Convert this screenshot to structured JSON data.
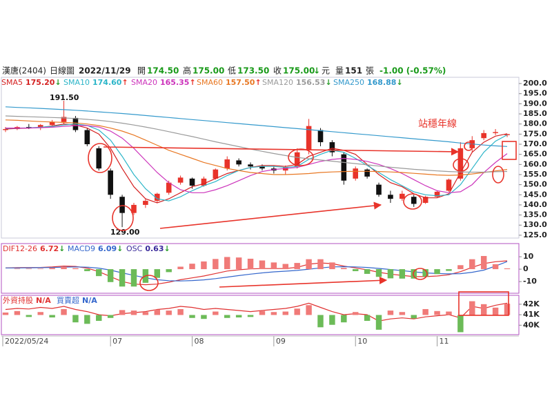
{
  "header": {
    "name": "漢唐(2404)",
    "period": "日線圖",
    "date": "2022/11/29",
    "open_label": "開",
    "open": "174.50",
    "high_label": "高",
    "high": "175.00",
    "low_label": "低",
    "low": "173.50",
    "close_label": "收",
    "close": "175.00",
    "close_arrow": "↓",
    "unit": "元",
    "volume_label": "量",
    "volume": "151",
    "volume_unit": "張",
    "change": "-1.00 (-0.57%)"
  },
  "chart_data": [
    {
      "type": "candlestick",
      "ylim": [
        123.6,
        203.1
      ],
      "yticks": [
        {
          "value": 200,
          "label": "200.0"
        },
        {
          "value": 195,
          "label": "195.0"
        },
        {
          "value": 190,
          "label": "190.0"
        },
        {
          "value": 185,
          "label": "185.0"
        },
        {
          "value": 180,
          "label": "180.0"
        },
        {
          "value": 175,
          "label": "175.0"
        },
        {
          "value": 170,
          "label": "170.0"
        },
        {
          "value": 165,
          "label": "165.0"
        },
        {
          "value": 160,
          "label": "160.0"
        },
        {
          "value": 155,
          "label": "155.0"
        },
        {
          "value": 150,
          "label": "150.0"
        },
        {
          "value": 145,
          "label": "145.0"
        },
        {
          "value": 140,
          "label": "140.0"
        },
        {
          "value": 135,
          "label": "135.0"
        },
        {
          "value": 130,
          "label": "130.0"
        },
        {
          "value": 125,
          "label": "125.0"
        }
      ],
      "categories": [
        "2022/05/24",
        null,
        null,
        null,
        null,
        null,
        null,
        null,
        null,
        "07",
        null,
        null,
        null,
        null,
        null,
        null,
        "08",
        null,
        null,
        null,
        null,
        null,
        null,
        "09",
        null,
        null,
        null,
        null,
        null,
        null,
        "10",
        null,
        null,
        null,
        null,
        null,
        null,
        "11",
        null,
        null,
        null,
        null,
        null,
        null
      ],
      "up_color": "#e8332a",
      "down_color": "#111111",
      "candles": [
        [
          177,
          178.5,
          176,
          177.5
        ],
        [
          177.5,
          179,
          177,
          178.5
        ],
        [
          178.5,
          180,
          177.5,
          178
        ],
        [
          178,
          180,
          177,
          179.5
        ],
        [
          179.5,
          182,
          179,
          181
        ],
        [
          181,
          191.5,
          180,
          183.5
        ],
        [
          183,
          184,
          176,
          177
        ],
        [
          177,
          178,
          169,
          170
        ],
        [
          168,
          169,
          157,
          158
        ],
        [
          157,
          158,
          143,
          145
        ],
        [
          144,
          145,
          129,
          136
        ],
        [
          136,
          141,
          135,
          140
        ],
        [
          140,
          143,
          138.5,
          142
        ],
        [
          142,
          146,
          141,
          145.5
        ],
        [
          146,
          152,
          145,
          151
        ],
        [
          151,
          154.5,
          150,
          153.5
        ],
        [
          153,
          153.5,
          148,
          149.5
        ],
        [
          149.5,
          154,
          149,
          153
        ],
        [
          153,
          158,
          152.5,
          157.5
        ],
        [
          158,
          164,
          157,
          162.5
        ],
        [
          162,
          163,
          159,
          160
        ],
        [
          160,
          161,
          157.5,
          159
        ],
        [
          159,
          160,
          157,
          158
        ],
        [
          158,
          159,
          155.5,
          157
        ],
        [
          157,
          159.5,
          155,
          158.5
        ],
        [
          159,
          168,
          158,
          166
        ],
        [
          167,
          182.5,
          165,
          179
        ],
        [
          177,
          178,
          169,
          171
        ],
        [
          171,
          172,
          164,
          166
        ],
        [
          165,
          166,
          150,
          152
        ],
        [
          153,
          159,
          152,
          158
        ],
        [
          157.5,
          158,
          153,
          154
        ],
        [
          150,
          151,
          144,
          145
        ],
        [
          145,
          147,
          141,
          143
        ],
        [
          143,
          147,
          142,
          145.5
        ],
        [
          144,
          145,
          139,
          140.5
        ],
        [
          141,
          144.5,
          140.5,
          144
        ],
        [
          144,
          147,
          143.5,
          146.5
        ],
        [
          147,
          153,
          146.5,
          152.5
        ],
        [
          153,
          171,
          152,
          168
        ],
        [
          168,
          174,
          166,
          172
        ],
        [
          173,
          177,
          172,
          175.5
        ],
        [
          175.5,
          177.5,
          174.5,
          176
        ],
        [
          174.5,
          175,
          173.5,
          175
        ]
      ],
      "series": [
        {
          "name": "SMA5",
          "label": "175.20",
          "arrow": "↓",
          "arrow_color": "#2a9d2a",
          "color": "#d42020",
          "kind": "line",
          "values": [
            177.5,
            177.8,
            178,
            178.3,
            179,
            180,
            179.5,
            178,
            175,
            168,
            158,
            149,
            143,
            141,
            143,
            146,
            149,
            150.5,
            153,
            155.5,
            157,
            158.5,
            159.5,
            159.5,
            159,
            160,
            164,
            166,
            168,
            167,
            165,
            160,
            155,
            151,
            149,
            145.5,
            143.5,
            143.5,
            145.5,
            156,
            166,
            171,
            174,
            175.2
          ]
        },
        {
          "name": "SMA10",
          "label": "174.60",
          "arrow": "↑",
          "arrow_color": "#e8332a",
          "color": "#2bb5c8",
          "kind": "line",
          "values": [
            177.8,
            178,
            178.1,
            178.4,
            178.8,
            179.5,
            180,
            179.3,
            177,
            172,
            164,
            155,
            148,
            143,
            142,
            144,
            147,
            149.5,
            151.5,
            154.5,
            157,
            158.5,
            159,
            159,
            158.5,
            159,
            162.5,
            165,
            167,
            166,
            163,
            159.5,
            156,
            152.5,
            149.5,
            146.5,
            145,
            144.5,
            145,
            150,
            158,
            166,
            171.5,
            174.6
          ]
        },
        {
          "name": "SMA20",
          "label": "165.35",
          "arrow": "↑",
          "arrow_color": "#e8332a",
          "color": "#cc33bb",
          "kind": "line",
          "values": [
            178,
            178,
            178,
            178.2,
            178.4,
            178.8,
            179.2,
            179.2,
            178.5,
            176.5,
            173,
            168,
            162,
            156,
            151,
            147.5,
            146,
            146,
            147.5,
            149.5,
            152,
            154.5,
            156.5,
            157.5,
            158,
            158.5,
            160,
            161.5,
            162.5,
            163,
            162.5,
            161.5,
            160,
            158,
            155.5,
            152.5,
            149.5,
            147,
            146,
            146.5,
            150,
            156,
            161,
            165.35
          ]
        },
        {
          "name": "SMA60",
          "label": "157.50",
          "arrow": "↑",
          "arrow_color": "#e8332a",
          "color": "#e87722",
          "kind": "line",
          "values": [
            182,
            181.8,
            181.5,
            181.2,
            181,
            180.8,
            180.5,
            180,
            179.2,
            178,
            176.5,
            174.5,
            172,
            169.5,
            167,
            165,
            163,
            161,
            159.5,
            158,
            157,
            156,
            155.5,
            155,
            155,
            155.2,
            155.5,
            156,
            156.3,
            156.5,
            156.6,
            156.6,
            156.5,
            156.3,
            156,
            155.6,
            155.2,
            154.8,
            154.6,
            154.8,
            155.3,
            156,
            156.8,
            157.5
          ]
        },
        {
          "name": "SMA120",
          "label": "156.53",
          "arrow": "↓",
          "arrow_color": "#2a9d2a",
          "color": "#9a9a9a",
          "kind": "line",
          "values": [
            184,
            183.8,
            183.6,
            183.4,
            183.2,
            183,
            182.7,
            182.3,
            181.8,
            181.2,
            180.4,
            179.5,
            178.5,
            177.4,
            176.2,
            175,
            173.8,
            172.5,
            171.2,
            170,
            168.8,
            167.6,
            166.5,
            165.4,
            164.4,
            163.5,
            162.8,
            162.2,
            161.6,
            161,
            160.4,
            159.8,
            159.2,
            158.6,
            158.1,
            157.6,
            157.2,
            156.8,
            156.5,
            156.3,
            156.2,
            156.2,
            156.4,
            156.53
          ]
        },
        {
          "name": "SMA250",
          "label": "168.88",
          "arrow": "↓",
          "arrow_color": "#2a9d2a",
          "color": "#3399cc",
          "kind": "line",
          "values": [
            188.5,
            188.2,
            188,
            187.7,
            187.4,
            187.1,
            186.8,
            186.4,
            186,
            185.6,
            185.2,
            184.7,
            184.2,
            183.7,
            183.2,
            182.7,
            182.2,
            181.7,
            181.2,
            180.7,
            180.2,
            179.7,
            179.2,
            178.7,
            178.2,
            177.7,
            177.2,
            176.7,
            176.2,
            175.7,
            175.2,
            174.7,
            174.2,
            173.7,
            173.2,
            172.7,
            172.2,
            171.7,
            171.2,
            170.6,
            170.1,
            169.6,
            169.2,
            168.88
          ]
        }
      ],
      "annotations": [
        "191.50",
        "129.00",
        "站穩年線"
      ]
    },
    {
      "type": "macd",
      "ylim": [
        -19.4,
        20.6
      ],
      "yticks": [
        10,
        0,
        -10
      ],
      "series": [
        {
          "name": "DIF12-26",
          "label": "6.72",
          "arrow": "↓",
          "arrow_color": "#2a9d2a",
          "color": "#e03030",
          "kind": "line",
          "values": [
            1,
            1.2,
            1.3,
            1.4,
            1.8,
            2.5,
            2.2,
            0.8,
            -2,
            -6,
            -10,
            -12,
            -12.5,
            -12,
            -10.5,
            -8.5,
            -7,
            -5.5,
            -3.5,
            -1.5,
            -0.5,
            0.2,
            0.5,
            0.5,
            0.5,
            1.5,
            4,
            5,
            4.5,
            2.5,
            1,
            -0.5,
            -2.5,
            -4,
            -5,
            -6,
            -6,
            -5.5,
            -4.5,
            -2,
            1.5,
            4.5,
            6,
            6.72
          ]
        },
        {
          "name": "MACD9",
          "label": "6.09",
          "arrow": "↓",
          "arrow_color": "#2a9d2a",
          "color": "#3366cc",
          "kind": "line",
          "values": [
            1,
            1,
            1.1,
            1.2,
            1.3,
            1.6,
            1.8,
            1.6,
            0.8,
            -0.8,
            -3,
            -5,
            -7,
            -8.5,
            -9.3,
            -9.5,
            -9.2,
            -8.6,
            -7.6,
            -6.4,
            -5.2,
            -4,
            -3,
            -2.2,
            -1.6,
            -1,
            0,
            1,
            1.8,
            2,
            1.8,
            1.4,
            0.6,
            -0.3,
            -1.2,
            -2.2,
            -3,
            -3.5,
            -3.8,
            -3.6,
            -2.5,
            -0.8,
            2.5,
            6.09
          ]
        },
        {
          "name": "OSC",
          "label": "0.63",
          "arrow": "↓",
          "arrow_color": "#2a9d2a",
          "color": "#3a2a9a",
          "kind": "bar",
          "up_color": "#f07a78",
          "down_color": "#6cbb58",
          "values": [
            0,
            0.4,
            0.4,
            0.4,
            1,
            1.8,
            0.8,
            -1.6,
            -5.6,
            -10.4,
            -14,
            -14,
            -11,
            -7,
            -2.4,
            2,
            4.4,
            6.2,
            8.2,
            9.8,
            9.4,
            8.4,
            7,
            5.4,
            4.2,
            5,
            8,
            8,
            5.4,
            1,
            -1.6,
            -3.8,
            -6.2,
            -7.4,
            -7.6,
            -7.6,
            -6,
            -4,
            -1.4,
            3.2,
            8,
            10.6,
            4,
            0.63
          ]
        }
      ]
    },
    {
      "type": "holdings",
      "ylim": [
        39100,
        42850
      ],
      "y2lim": [
        -400,
        400
      ],
      "yticks": [
        {
          "value": 42000,
          "label": "42K"
        },
        {
          "value": 41000,
          "label": "41K"
        },
        {
          "value": 40000,
          "label": "40K"
        }
      ],
      "series": [
        {
          "name": "外資持股",
          "label": "N/A",
          "color": "#e03030",
          "kind": "line",
          "values": [
            41500,
            41600,
            41550,
            41700,
            41600,
            41800,
            41500,
            41300,
            41000,
            40900,
            41100,
            41200,
            41300,
            41500,
            41600,
            41800,
            41700,
            41500,
            41600,
            41500,
            41400,
            41300,
            41400,
            41500,
            41600,
            41800,
            42100,
            41700,
            41300,
            41000,
            41100,
            41000,
            40400,
            40600,
            40700,
            40600,
            40800,
            40900,
            41000,
            40700,
            41800,
            41600,
            41900,
            42100
          ]
        },
        {
          "name": "買賣超",
          "label": "N/A",
          "color": "#3366cc",
          "kind": "bar",
          "axis": "y2",
          "up_color": "#f07a78",
          "down_color": "#6cbb58",
          "values": [
            50,
            80,
            -40,
            60,
            -50,
            120,
            -150,
            -180,
            -120,
            -60,
            100,
            90,
            60,
            110,
            90,
            120,
            -60,
            -80,
            70,
            -60,
            -50,
            -40,
            80,
            60,
            70,
            130,
            200,
            -250,
            -200,
            -150,
            60,
            -120,
            -300,
            90,
            60,
            -70,
            120,
            80,
            70,
            -350,
            280,
            220,
            150,
            230
          ]
        }
      ]
    }
  ]
}
